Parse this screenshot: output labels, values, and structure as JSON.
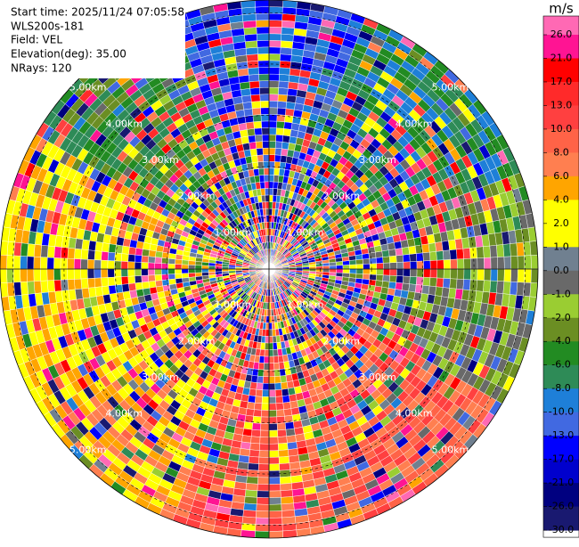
{
  "info": {
    "start_time": "Start time: 2025/11/24 07:05:58",
    "site": "WLS200s-181",
    "field": "Field: VEL",
    "elevation": "Elevation(deg): 35.00",
    "nrays": "NRays: 120"
  },
  "chart_data": {
    "type": "ppi",
    "rlim": [
      0,
      5.25
    ],
    "range_rings": [
      {
        "value": 1,
        "label": "1.00km"
      },
      {
        "value": 2,
        "label": "2.00km"
      },
      {
        "value": 3,
        "label": "3.00km"
      },
      {
        "value": 4,
        "label": "4.00km"
      },
      {
        "value": 5,
        "label": "5.00km"
      }
    ],
    "colorbar": {
      "unit": "m/s",
      "ticks": [
        {
          "value": 26,
          "label": "26.0"
        },
        {
          "value": 21,
          "label": "21.0"
        },
        {
          "value": 17,
          "label": "17.0"
        },
        {
          "value": 13,
          "label": "13.0"
        },
        {
          "value": 10,
          "label": "10.0"
        },
        {
          "value": 8,
          "label": "8.0"
        },
        {
          "value": 6,
          "label": "6.0"
        },
        {
          "value": 4,
          "label": "4.0"
        },
        {
          "value": 2,
          "label": "2.0"
        },
        {
          "value": 1,
          "label": "1.0"
        },
        {
          "value": 0,
          "label": "0.0"
        },
        {
          "value": -1,
          "label": "-1.0"
        },
        {
          "value": -2,
          "label": "-2.0"
        },
        {
          "value": -4,
          "label": "-4.0"
        },
        {
          "value": -6,
          "label": "-6.0"
        },
        {
          "value": -8,
          "label": "-8.0"
        },
        {
          "value": -10,
          "label": "-10.0"
        },
        {
          "value": -13,
          "label": "-13.0"
        },
        {
          "value": -17,
          "label": "-17.0"
        },
        {
          "value": -21,
          "label": "-21.0"
        },
        {
          "value": -26,
          "label": "-26.0"
        },
        {
          "value": -30,
          "label": "-30.0"
        }
      ],
      "colors": [
        "#ff69b4",
        "#ff1493",
        "#ff0000",
        "#ff2a2a",
        "#ff4040",
        "#ff6347",
        "#ff7f50",
        "#ffa500",
        "#ffff00",
        "#ffff00",
        "#708090",
        "#696969",
        "#9acd32",
        "#6b8e23",
        "#228b22",
        "#2e8b57",
        "#1e7fd8",
        "#4169e1",
        "#0000ff",
        "#0000cd",
        "#000080",
        "#191970"
      ]
    }
  }
}
